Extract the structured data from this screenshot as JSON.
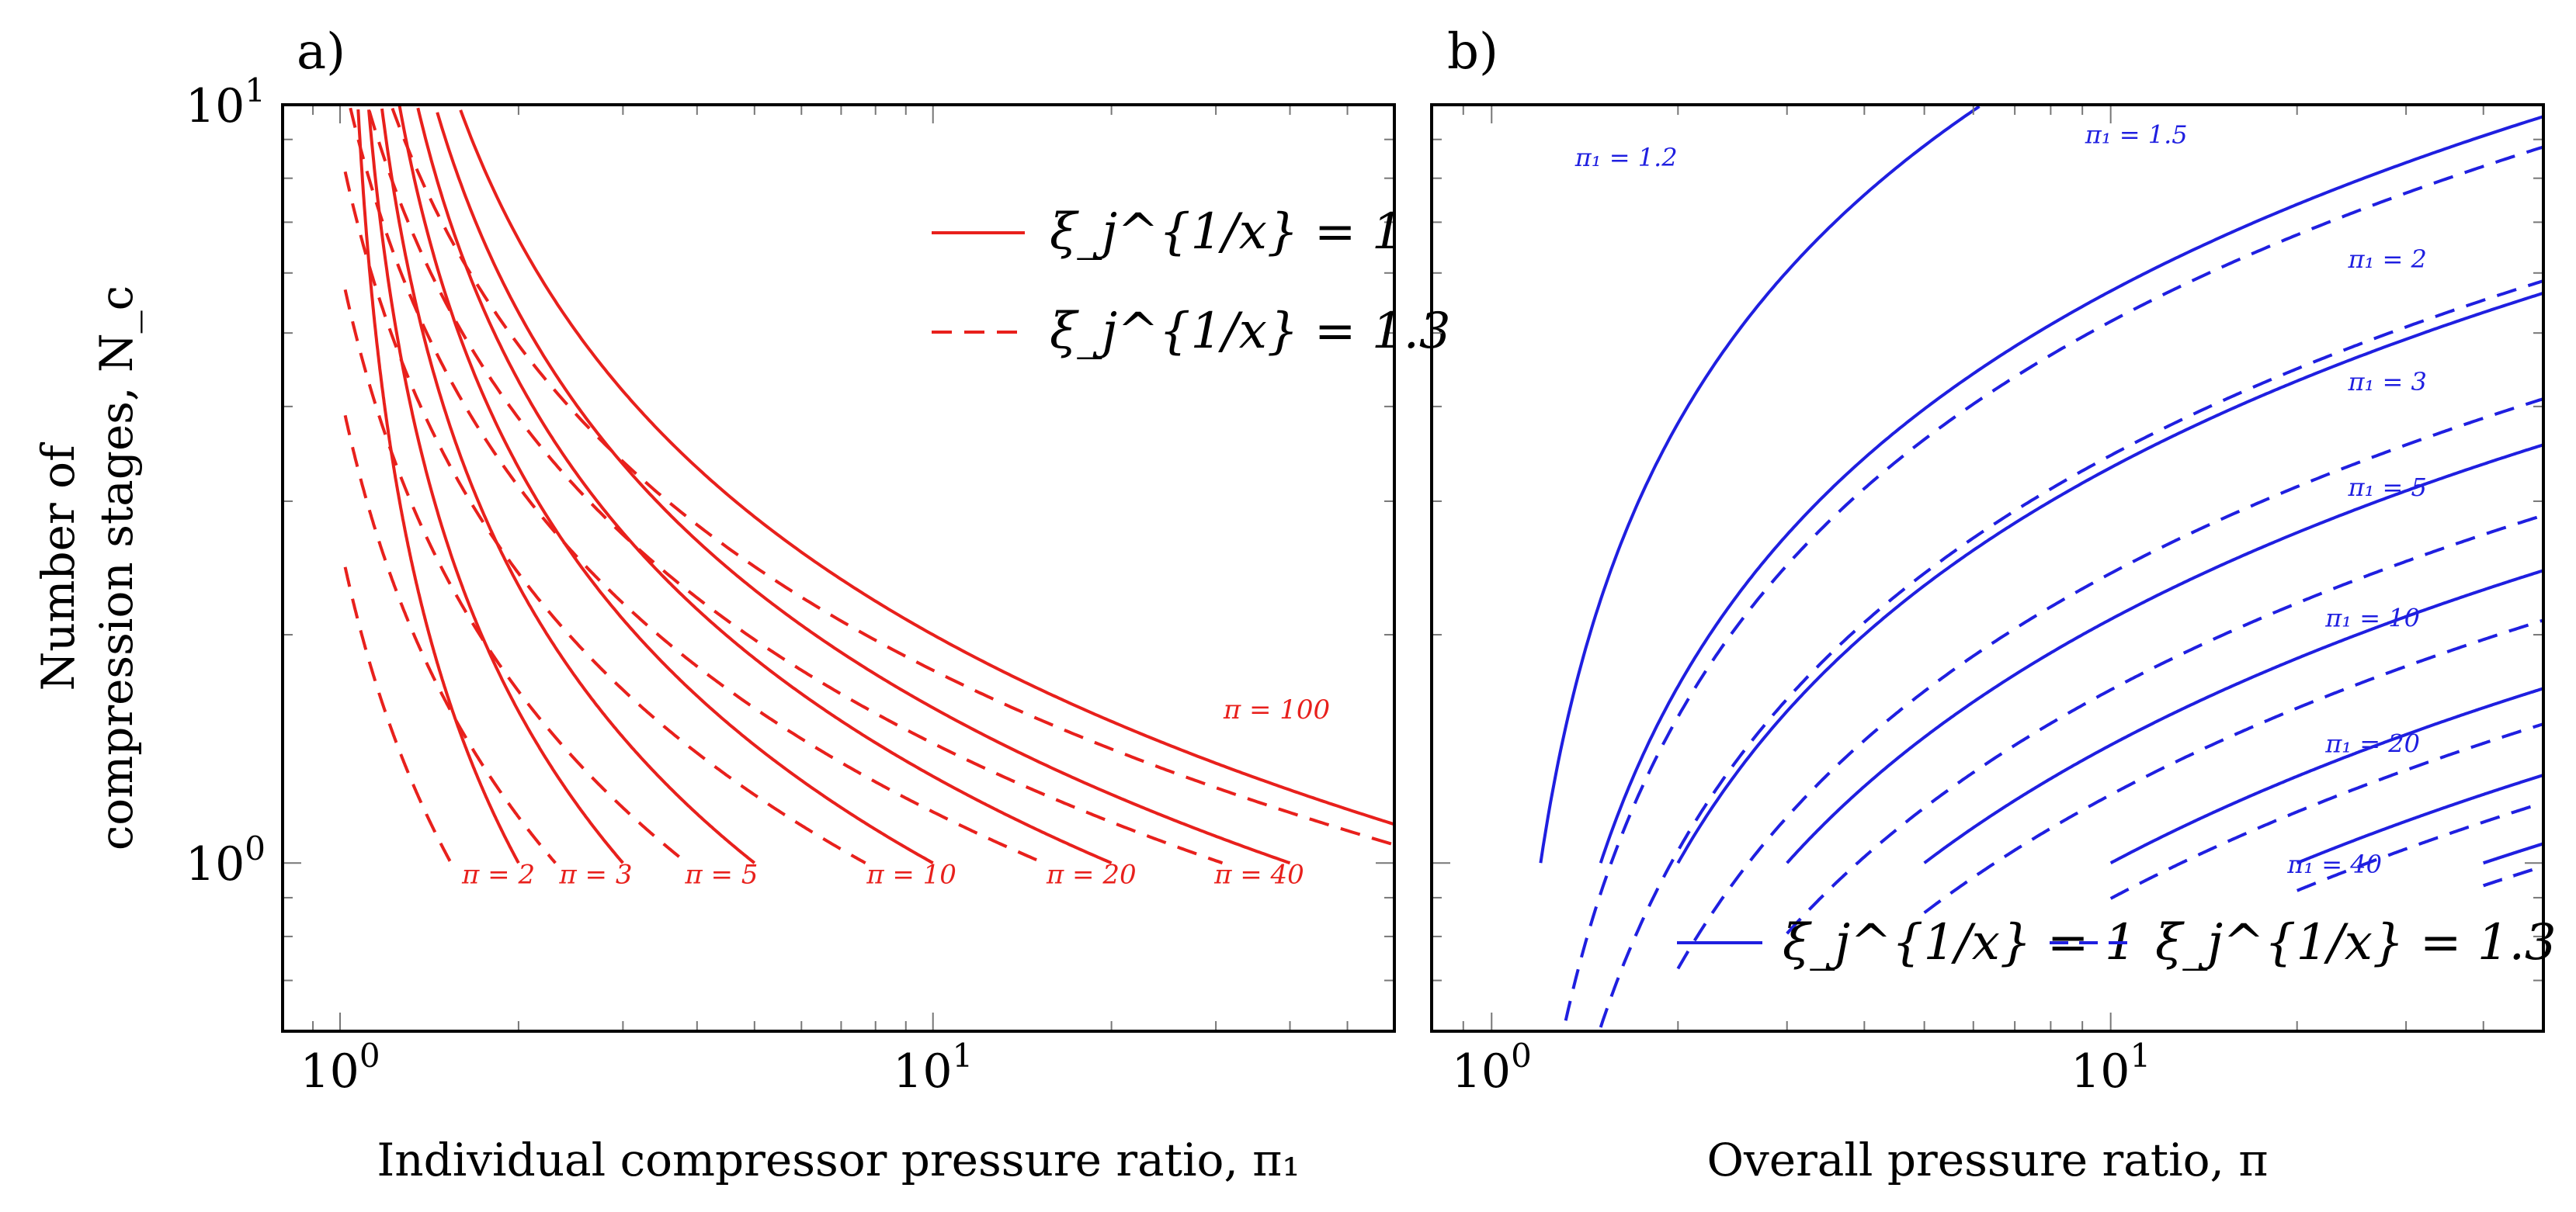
{
  "chart_data": [
    {
      "type": "line",
      "panel_label": "a)",
      "xlabel": "Individual compressor pressure ratio, π₁",
      "ylabel_line1": "Number of",
      "ylabel_line2": "compression stages, N_c",
      "xscale": "log",
      "yscale": "log",
      "xlim": [
        0.8,
        60
      ],
      "ylim": [
        0.6,
        10
      ],
      "x_ticks": [
        {
          "base": "10",
          "exp": "0",
          "value": 1
        },
        {
          "base": "10",
          "exp": "1",
          "value": 10
        }
      ],
      "y_ticks": [
        {
          "base": "10",
          "exp": "0",
          "value": 1
        },
        {
          "base": "10",
          "exp": "1",
          "value": 10
        }
      ],
      "color": "#e8201c",
      "legend": [
        {
          "text": "ξ_j^{1/x} = 1",
          "style": "solid"
        },
        {
          "text": "ξ_j^{1/x} = 1.3",
          "style": "dashed"
        }
      ],
      "legend_position": "top-right",
      "series": [
        {
          "name": "π = 2",
          "pi": 2,
          "xi": 1,
          "style": "solid"
        },
        {
          "name": "π = 2",
          "pi": 2,
          "xi": 1.3,
          "style": "dashed"
        },
        {
          "name": "π = 3",
          "pi": 3,
          "xi": 1,
          "style": "solid"
        },
        {
          "name": "π = 3",
          "pi": 3,
          "xi": 1.3,
          "style": "dashed"
        },
        {
          "name": "π = 5",
          "pi": 5,
          "xi": 1,
          "style": "solid"
        },
        {
          "name": "π = 5",
          "pi": 5,
          "xi": 1.3,
          "style": "dashed"
        },
        {
          "name": "π = 10",
          "pi": 10,
          "xi": 1,
          "style": "solid"
        },
        {
          "name": "π = 10",
          "pi": 10,
          "xi": 1.3,
          "style": "dashed"
        },
        {
          "name": "π = 20",
          "pi": 20,
          "xi": 1,
          "style": "solid"
        },
        {
          "name": "π = 20",
          "pi": 20,
          "xi": 1.3,
          "style": "dashed"
        },
        {
          "name": "π = 40",
          "pi": 40,
          "xi": 1,
          "style": "solid"
        },
        {
          "name": "π = 40",
          "pi": 40,
          "xi": 1.3,
          "style": "dashed"
        },
        {
          "name": "π = 100",
          "pi": 100,
          "xi": 1,
          "style": "solid"
        },
        {
          "name": "π = 100",
          "pi": 100,
          "xi": 1.3,
          "style": "dashed"
        }
      ],
      "annotations": [
        {
          "text": "π = 2",
          "x": 1.85,
          "y": 0.94
        },
        {
          "text": "π = 3",
          "x": 2.7,
          "y": 0.94
        },
        {
          "text": "π = 5",
          "x": 4.4,
          "y": 0.94
        },
        {
          "text": "π = 10",
          "x": 9.2,
          "y": 0.94
        },
        {
          "text": "π = 20",
          "x": 18.5,
          "y": 0.94
        },
        {
          "text": "π = 40",
          "x": 35.5,
          "y": 0.94
        },
        {
          "text": "π = 100",
          "x": 38,
          "y": 1.55
        }
      ]
    },
    {
      "type": "line",
      "panel_label": "b)",
      "xlabel": "Overall pressure ratio, π",
      "xscale": "log",
      "yscale": "log",
      "xlim": [
        0.8,
        50
      ],
      "ylim": [
        0.6,
        10
      ],
      "x_ticks": [
        {
          "base": "10",
          "exp": "0",
          "value": 1
        },
        {
          "base": "10",
          "exp": "1",
          "value": 10
        }
      ],
      "color": "#1f1fe0",
      "legend": [
        {
          "text": "ξ_j^{1/x} = 1",
          "style": "solid"
        },
        {
          "text": "ξ_j^{1/x} = 1.3",
          "style": "dashed"
        }
      ],
      "legend_position": "bottom-center",
      "series": [
        {
          "name": "π₁ = 1.2",
          "pi1": 1.2,
          "xi": 1,
          "style": "solid"
        },
        {
          "name": "π₁ = 1.2",
          "pi1": 1.2,
          "xi": 1.3,
          "style": "dashed"
        },
        {
          "name": "π₁ = 1.5",
          "pi1": 1.5,
          "xi": 1,
          "style": "solid"
        },
        {
          "name": "π₁ = 1.5",
          "pi1": 1.5,
          "xi": 1.3,
          "style": "dashed"
        },
        {
          "name": "π₁ = 2",
          "pi1": 2,
          "xi": 1,
          "style": "solid"
        },
        {
          "name": "π₁ = 2",
          "pi1": 2,
          "xi": 1.3,
          "style": "dashed"
        },
        {
          "name": "π₁ = 3",
          "pi1": 3,
          "xi": 1,
          "style": "solid"
        },
        {
          "name": "π₁ = 3",
          "pi1": 3,
          "xi": 1.3,
          "style": "dashed"
        },
        {
          "name": "π₁ = 5",
          "pi1": 5,
          "xi": 1,
          "style": "solid"
        },
        {
          "name": "π₁ = 5",
          "pi1": 5,
          "xi": 1.3,
          "style": "dashed"
        },
        {
          "name": "π₁ = 10",
          "pi1": 10,
          "xi": 1,
          "style": "solid"
        },
        {
          "name": "π₁ = 10",
          "pi1": 10,
          "xi": 1.3,
          "style": "dashed"
        },
        {
          "name": "π₁ = 20",
          "pi1": 20,
          "xi": 1,
          "style": "solid"
        },
        {
          "name": "π₁ = 20",
          "pi1": 20,
          "xi": 1.3,
          "style": "dashed"
        },
        {
          "name": "π₁ = 40",
          "pi1": 40,
          "xi": 1,
          "style": "solid"
        },
        {
          "name": "π₁ = 40",
          "pi1": 40,
          "xi": 1.3,
          "style": "dashed"
        }
      ],
      "annotations": [
        {
          "text": "π₁ = 1.2",
          "x": 1.65,
          "y": 8.3
        },
        {
          "text": "π₁ = 1.5",
          "x": 11,
          "y": 8.9
        },
        {
          "text": "π₁ = 2",
          "x": 28,
          "y": 6.1
        },
        {
          "text": "π₁ = 3",
          "x": 28,
          "y": 4.2
        },
        {
          "text": "π₁ = 5",
          "x": 28,
          "y": 3.05
        },
        {
          "text": "π₁ = 10",
          "x": 26.5,
          "y": 2.05
        },
        {
          "text": "π₁ = 20",
          "x": 26.5,
          "y": 1.4
        },
        {
          "text": "π₁ = 40",
          "x": 23,
          "y": 0.97
        }
      ]
    }
  ]
}
